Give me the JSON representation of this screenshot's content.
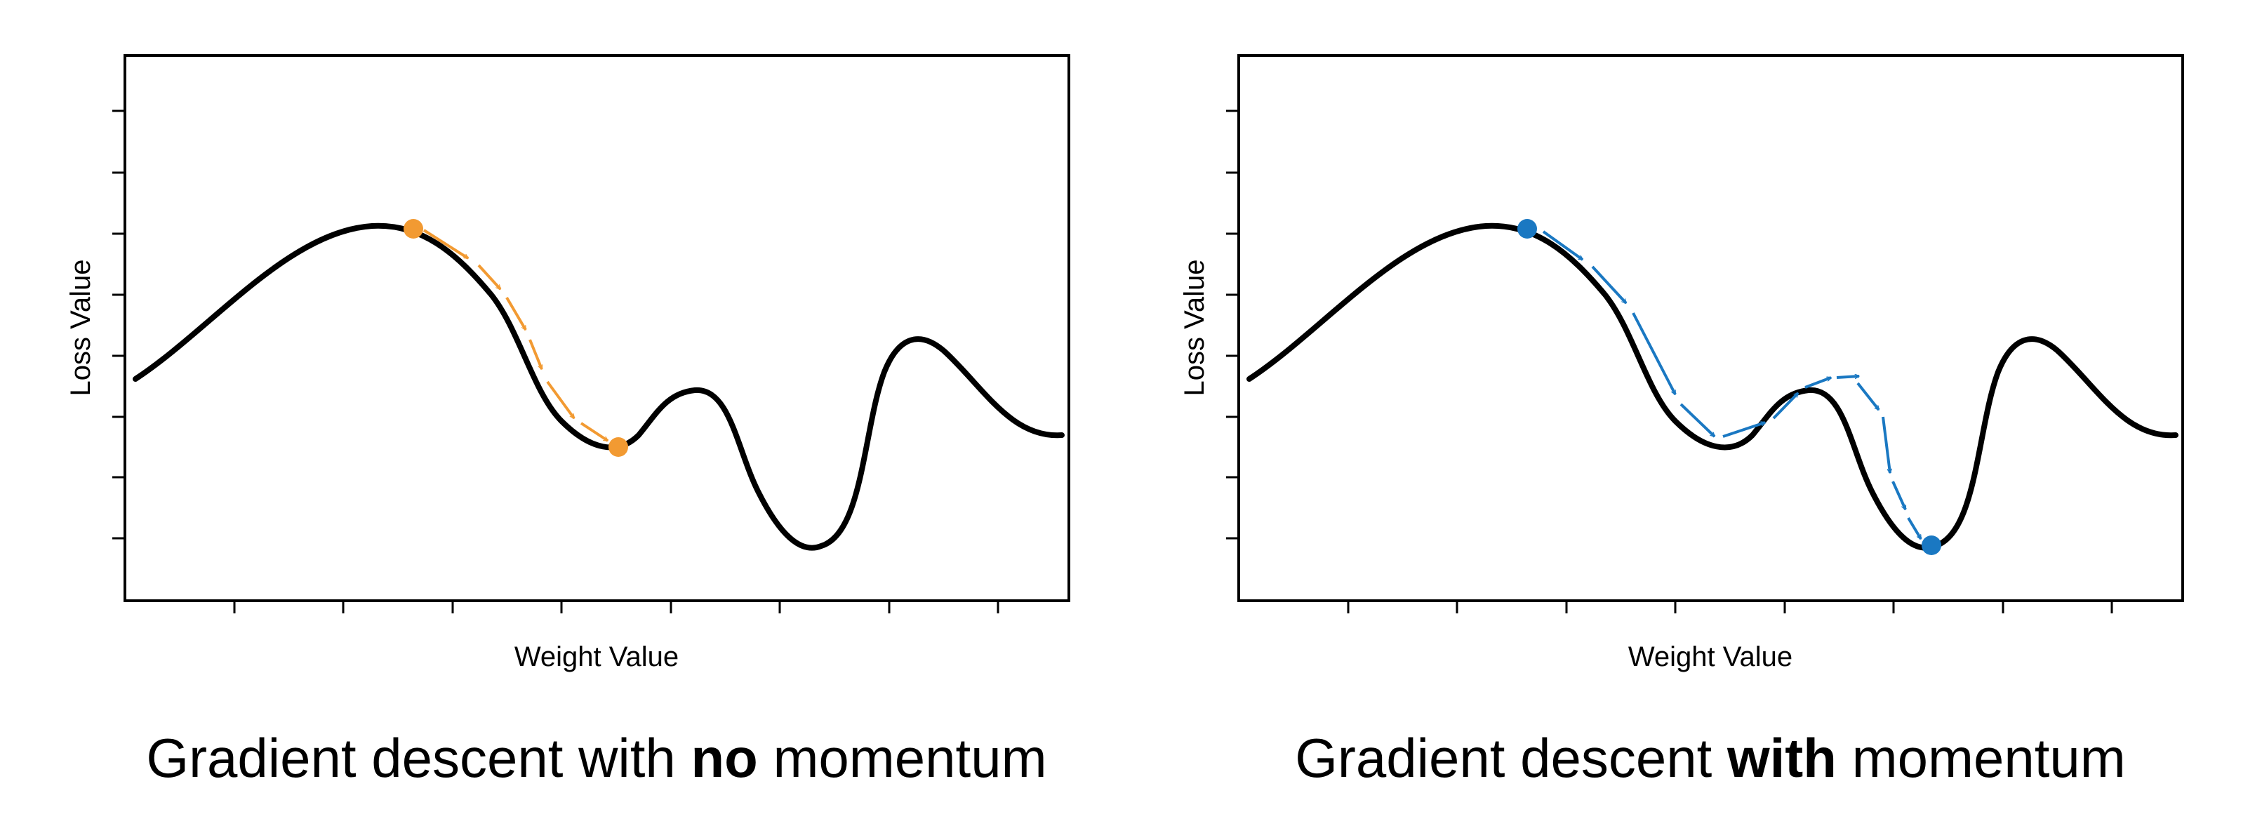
{
  "panels": [
    {
      "id": "no-momentum",
      "x_label": "Weight Value",
      "y_label": "Loss Value",
      "caption_pre": "Gradient descent with ",
      "caption_bold": "no",
      "caption_post": " momentum",
      "path_color": "#f29a32",
      "result": "stuck in local minimum"
    },
    {
      "id": "with-momentum",
      "x_label": "Weight Value",
      "y_label": "Loss Value",
      "caption_pre": "Gradient descent ",
      "caption_bold": "with",
      "caption_post": " momentum",
      "path_color": "#1a78c2",
      "result": "reaches global minimum"
    }
  ]
}
